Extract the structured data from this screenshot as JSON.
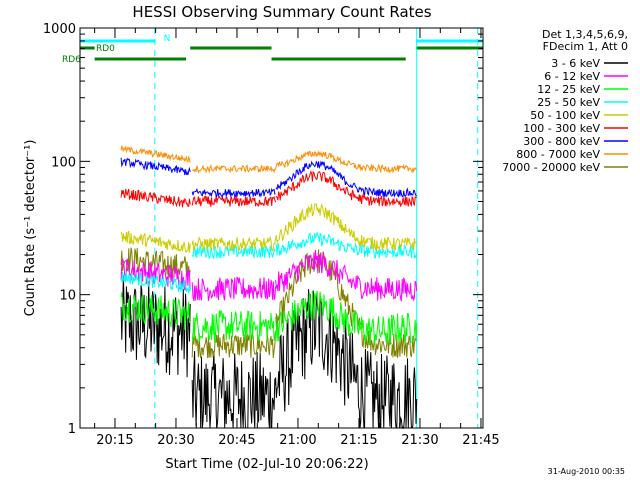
{
  "chart_data": {
    "type": "line",
    "title": "HESSI Observing Summary Count Rates",
    "ylabel": "Count Rate (s⁻¹ detector⁻¹)",
    "xlabel": "Start Time (02-Jul-10 20:06:22)",
    "y_scale": "log",
    "ylim": [
      1,
      1000
    ],
    "xlim_minutes": [
      6.4,
      105.5
    ],
    "x_ticks": [
      {
        "minute": 15,
        "label": "20:15"
      },
      {
        "minute": 30,
        "label": "20:30"
      },
      {
        "minute": 45,
        "label": "20:45"
      },
      {
        "minute": 60,
        "label": "21:00"
      },
      {
        "minute": 75,
        "label": "21:15"
      },
      {
        "minute": 90,
        "label": "21:30"
      },
      {
        "minute": 105,
        "label": "21:45"
      }
    ],
    "y_ticks": [
      {
        "value": 1,
        "label": "1"
      },
      {
        "value": 10,
        "label": "10"
      },
      {
        "value": 100,
        "label": "100"
      },
      {
        "value": 1000,
        "label": "1000"
      }
    ],
    "legend_header": [
      "Det 1,3,4,5,6,9,",
      "FDecim 1, Att 0"
    ],
    "series": [
      {
        "name": "3 - 6 keV",
        "color": "#000000"
      },
      {
        "name": "6 - 12 keV",
        "color": "#ff00ff"
      },
      {
        "name": "12 - 25 keV",
        "color": "#00ff00"
      },
      {
        "name": "25 - 50 keV",
        "color": "#00ffff"
      },
      {
        "name": "50 - 100 keV",
        "color": "#cccc00"
      },
      {
        "name": "100 - 300 keV",
        "color": "#ff0000"
      },
      {
        "name": "300 - 800 keV",
        "color": "#0000ff"
      },
      {
        "name": "800 - 7000 keV",
        "color": "#ff8c00"
      },
      {
        "name": "7000 - 20000 keV",
        "color": "#808000"
      }
    ],
    "segments": [
      [
        16.5,
        33.5
      ],
      [
        34,
        54.5
      ],
      [
        54.5,
        83
      ],
      [
        83,
        89.2
      ]
    ],
    "levels": {
      "3 - 6 keV": [
        6,
        1.7,
        1.6,
        1.7
      ],
      "6 - 12 keV": [
        15,
        11,
        11,
        11
      ],
      "12 - 25 keV": [
        8,
        5.8,
        5.3,
        5.6
      ],
      "25 - 50 keV": [
        13,
        21,
        21,
        21
      ],
      "50 - 100 keV": [
        26,
        24,
        24,
        24
      ],
      "100 - 300 keV": [
        55,
        50,
        50,
        50
      ],
      "300 - 800 keV": [
        95,
        58,
        58,
        58
      ],
      "800 - 7000 keV": [
        118,
        88,
        88,
        88
      ],
      "7000 - 20000 keV": [
        18,
        4.2,
        4.2,
        4.2
      ]
    },
    "flag_bars": [
      {
        "label": "N",
        "color": "#00ffff",
        "spans": [
          [
            6.4,
            25
          ],
          [
            89,
            105.5
          ]
        ],
        "level": 1
      },
      {
        "label": "RD0",
        "color": "#007f00",
        "spans": [
          [
            6.4,
            10
          ],
          [
            33.5,
            53.5
          ],
          [
            89,
            105.5
          ]
        ],
        "level": 2
      },
      {
        "label": "RD6",
        "color": "#007f00",
        "spans": [
          [
            10,
            32.5
          ],
          [
            53.5,
            86.5
          ]
        ],
        "level": 3
      }
    ],
    "vlines_solid_minutes": [
      6.4,
      89.2
    ],
    "vlines_dashed_minutes": [
      24.8,
      104.2
    ],
    "grid": false
  },
  "footer_date": "31-Aug-2010 00:35"
}
